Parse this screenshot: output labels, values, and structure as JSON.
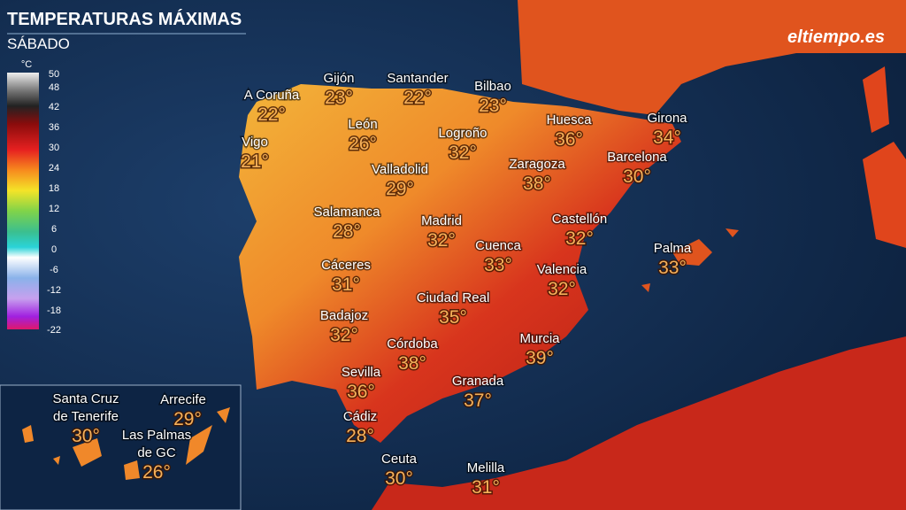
{
  "header": {
    "title": "TEMPERATURAS MÁXIMAS",
    "subtitle": "SÁBADO",
    "logo": "eltiempo.es"
  },
  "legend": {
    "unit": "°C",
    "labels": [
      50,
      48,
      42,
      36,
      30,
      24,
      18,
      12,
      6,
      0,
      -6,
      -12,
      -18,
      -22
    ]
  },
  "cities": [
    {
      "name": "A Coruña",
      "temp": "22°"
    },
    {
      "name": "Gijón",
      "temp": "23°"
    },
    {
      "name": "Santander",
      "temp": "22°"
    },
    {
      "name": "Bilbao",
      "temp": "23°"
    },
    {
      "name": "Vigo",
      "temp": "21°"
    },
    {
      "name": "León",
      "temp": "26°"
    },
    {
      "name": "Logroño",
      "temp": "32°"
    },
    {
      "name": "Huesca",
      "temp": "36°"
    },
    {
      "name": "Girona",
      "temp": "34°"
    },
    {
      "name": "Valladolid",
      "temp": "29°"
    },
    {
      "name": "Zaragoza",
      "temp": "38°"
    },
    {
      "name": "Barcelona",
      "temp": "30°"
    },
    {
      "name": "Salamanca",
      "temp": "28°"
    },
    {
      "name": "Madrid",
      "temp": "32°"
    },
    {
      "name": "Castellón",
      "temp": "32°"
    },
    {
      "name": "Cuenca",
      "temp": "33°"
    },
    {
      "name": "Palma",
      "temp": "33°"
    },
    {
      "name": "Cáceres",
      "temp": "31°"
    },
    {
      "name": "Valencia",
      "temp": "32°"
    },
    {
      "name": "Ciudad Real",
      "temp": "35°"
    },
    {
      "name": "Badajoz",
      "temp": "32°"
    },
    {
      "name": "Córdoba",
      "temp": "38°"
    },
    {
      "name": "Murcia",
      "temp": "39°"
    },
    {
      "name": "Sevilla",
      "temp": "36°"
    },
    {
      "name": "Granada",
      "temp": "37°"
    },
    {
      "name": "Cádiz",
      "temp": "28°"
    },
    {
      "name": "Ceuta",
      "temp": "30°"
    },
    {
      "name": "Melilla",
      "temp": "31°"
    }
  ],
  "canarias": [
    {
      "name": [
        "Santa Cruz",
        "de Tenerife"
      ],
      "temp": "30°"
    },
    {
      "name": [
        "Arrecife"
      ],
      "temp": "29°"
    },
    {
      "name": [
        "Las Palmas",
        "de GC"
      ],
      "temp": "26°"
    }
  ]
}
